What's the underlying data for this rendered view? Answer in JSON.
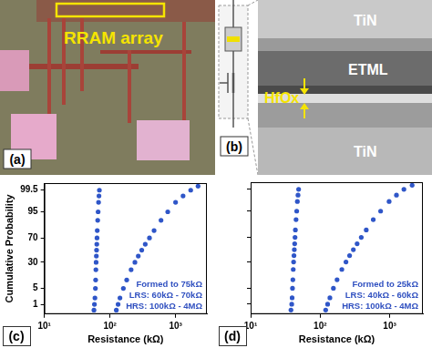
{
  "panel_a": {
    "label": "(a)",
    "text": "RRAM array"
  },
  "panel_b": {
    "label": "(b)",
    "layers": [
      "TiN",
      "ETML",
      "HfOx",
      "TiN"
    ]
  },
  "chart_data": [
    {
      "type": "scatter",
      "label": "(c)",
      "xlabel": "Resistance (kΩ)",
      "ylabel": "Cumulative Probability",
      "log": "x",
      "grid": false,
      "xlim": [
        10,
        3000
      ],
      "xticks": [
        {
          "value": 10,
          "label": "10¹"
        },
        {
          "value": 100,
          "label": "10²"
        },
        {
          "value": 1000,
          "label": "10³"
        }
      ],
      "ylim": [
        0.3,
        99.8
      ],
      "yticks": [
        1,
        5,
        30,
        70,
        95,
        99.5
      ],
      "annotations": [
        "Formed to 75kΩ",
        "LRS: 60kΩ - 70kΩ",
        "HRS: 100kΩ - 4MΩ"
      ],
      "series": [
        {
          "color": "#2f56c8",
          "marker": "circle",
          "x": [
            57,
            58,
            59,
            60,
            60.5,
            61,
            61.5,
            62,
            62.5,
            63,
            63.5,
            64,
            65,
            66,
            67,
            68,
            69
          ],
          "values": [
            0.5,
            1,
            2,
            5,
            10,
            20,
            30,
            40,
            50,
            60,
            70,
            80,
            90,
            95,
            98,
            99,
            99.5
          ]
        },
        {
          "color": "#2f56c8",
          "marker": "circle",
          "x": [
            125,
            133,
            142,
            160,
            180,
            210,
            240,
            270,
            305,
            345,
            400,
            470,
            600,
            760,
            1000,
            1300,
            1700,
            2200
          ],
          "values": [
            0.5,
            1,
            2,
            5,
            10,
            20,
            30,
            40,
            50,
            60,
            70,
            80,
            90,
            95,
            98,
            99,
            99.5,
            99.7
          ]
        }
      ]
    },
    {
      "type": "scatter",
      "label": "(d)",
      "xlabel": "Resistance (kΩ)",
      "log": "x",
      "grid": false,
      "tick_labels": "x",
      "xlim": [
        10,
        3000
      ],
      "xticks": [
        {
          "value": 10,
          "label": "10¹"
        },
        {
          "value": 100,
          "label": "10²"
        },
        {
          "value": 1000,
          "label": "10³"
        }
      ],
      "ylim": [
        0.3,
        99.8
      ],
      "yticks": [
        1,
        5,
        30,
        70,
        95,
        99.5
      ],
      "annotations": [
        "Formed to 25kΩ",
        "LRS: 40kΩ - 60kΩ",
        "HRS: 100kΩ - 4MΩ"
      ],
      "series": [
        {
          "color": "#2f56c8",
          "marker": "circle",
          "x": [
            38,
            39,
            39.5,
            40,
            40.5,
            41,
            41.5,
            42,
            42.5,
            43,
            43.5,
            44,
            45,
            46,
            47,
            48,
            49
          ],
          "values": [
            0.5,
            1,
            2,
            5,
            10,
            20,
            30,
            40,
            50,
            60,
            70,
            80,
            90,
            95,
            98,
            99,
            99.5
          ]
        },
        {
          "color": "#2f56c8",
          "marker": "circle",
          "x": [
            120,
            128,
            138,
            155,
            175,
            205,
            235,
            265,
            300,
            340,
            390,
            460,
            580,
            740,
            980,
            1250,
            1600,
            2100
          ],
          "values": [
            0.5,
            1,
            2,
            5,
            10,
            20,
            30,
            40,
            50,
            60,
            70,
            80,
            90,
            95,
            98,
            99,
            99.5,
            99.7
          ]
        }
      ]
    }
  ]
}
